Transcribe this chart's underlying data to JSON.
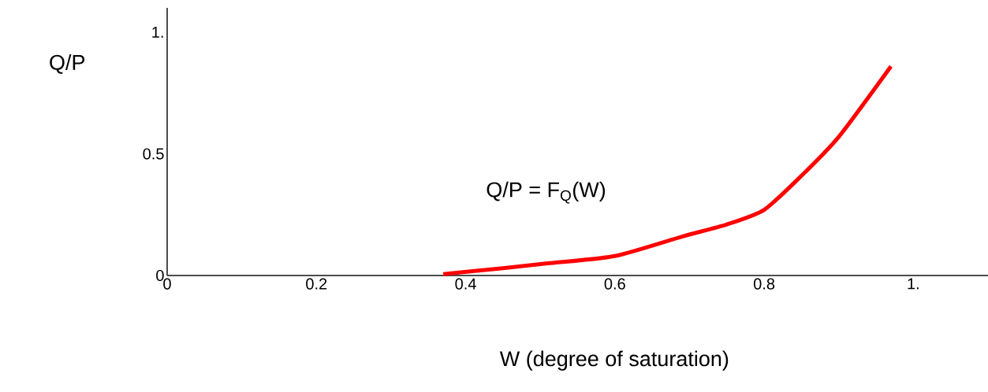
{
  "chart_data": {
    "type": "line",
    "xlabel": "W (degree of saturation)",
    "ylabel": "Q/P",
    "annotations": [
      "Q/P = F$_{Q}$(W)"
    ],
    "x": [
      0.37,
      0.45,
      0.51,
      0.6,
      0.69,
      0.75,
      0.8,
      0.85,
      0.9,
      0.97
    ],
    "series": [
      {
        "color": "#ff0000",
        "values": [
          0.006,
          0.03,
          0.05,
          0.08,
          0.16,
          0.21,
          0.27,
          0.41,
          0.57,
          0.86
        ]
      }
    ],
    "xlim": [
      0,
      1.1
    ],
    "ylim": [
      0,
      1.1
    ],
    "xticks": [
      0,
      0.2,
      0.4,
      0.6,
      0.8,
      {
        "value": 1,
        "label": "1."
      }
    ],
    "yticks": [
      0,
      0.5,
      {
        "value": 1,
        "label": "1."
      }
    ],
    "grid": false,
    "marker": "none",
    "line_style": "solid"
  }
}
